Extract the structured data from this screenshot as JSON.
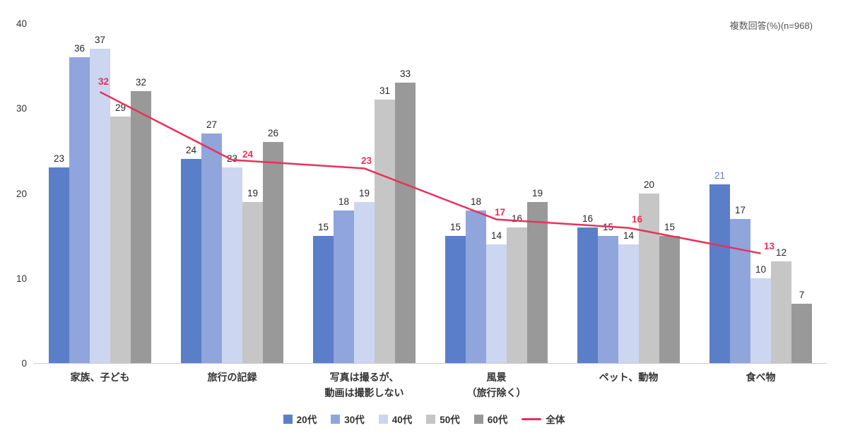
{
  "note": "複数回答(%)(n=968)",
  "chart_data": {
    "type": "bar",
    "title": "",
    "xlabel": "",
    "ylabel": "",
    "ylim": [
      0,
      40
    ],
    "yticks": [
      0,
      10,
      20,
      30,
      40
    ],
    "grid": false,
    "legend_position": "bottom",
    "categories": [
      "家族、子ども",
      "旅行の記録",
      "写真は撮るが、\n動画は撮影しない",
      "風景\n（旅行除く）",
      "ペット、動物",
      "食べ物"
    ],
    "series": [
      {
        "name": "20代",
        "color": "#5b7ec9",
        "values": [
          23,
          24,
          15,
          15,
          16,
          21
        ]
      },
      {
        "name": "30代",
        "color": "#8fa5dc",
        "values": [
          36,
          27,
          18,
          18,
          15,
          17
        ]
      },
      {
        "name": "40代",
        "color": "#ccd6f1",
        "values": [
          37,
          23,
          19,
          14,
          14,
          10
        ]
      },
      {
        "name": "50代",
        "color": "#c6c6c6",
        "values": [
          29,
          19,
          31,
          16,
          20,
          12
        ]
      },
      {
        "name": "60代",
        "color": "#999999",
        "values": [
          32,
          26,
          33,
          19,
          15,
          7
        ]
      }
    ],
    "line_series": {
      "name": "全体",
      "color": "#e8315b",
      "values": [
        32,
        24,
        23,
        17,
        16,
        13
      ]
    },
    "label_color_default": "#262626",
    "label_overrides": [
      {
        "category_index": 5,
        "series_index": 0,
        "color": "#5b7ec9"
      }
    ]
  }
}
